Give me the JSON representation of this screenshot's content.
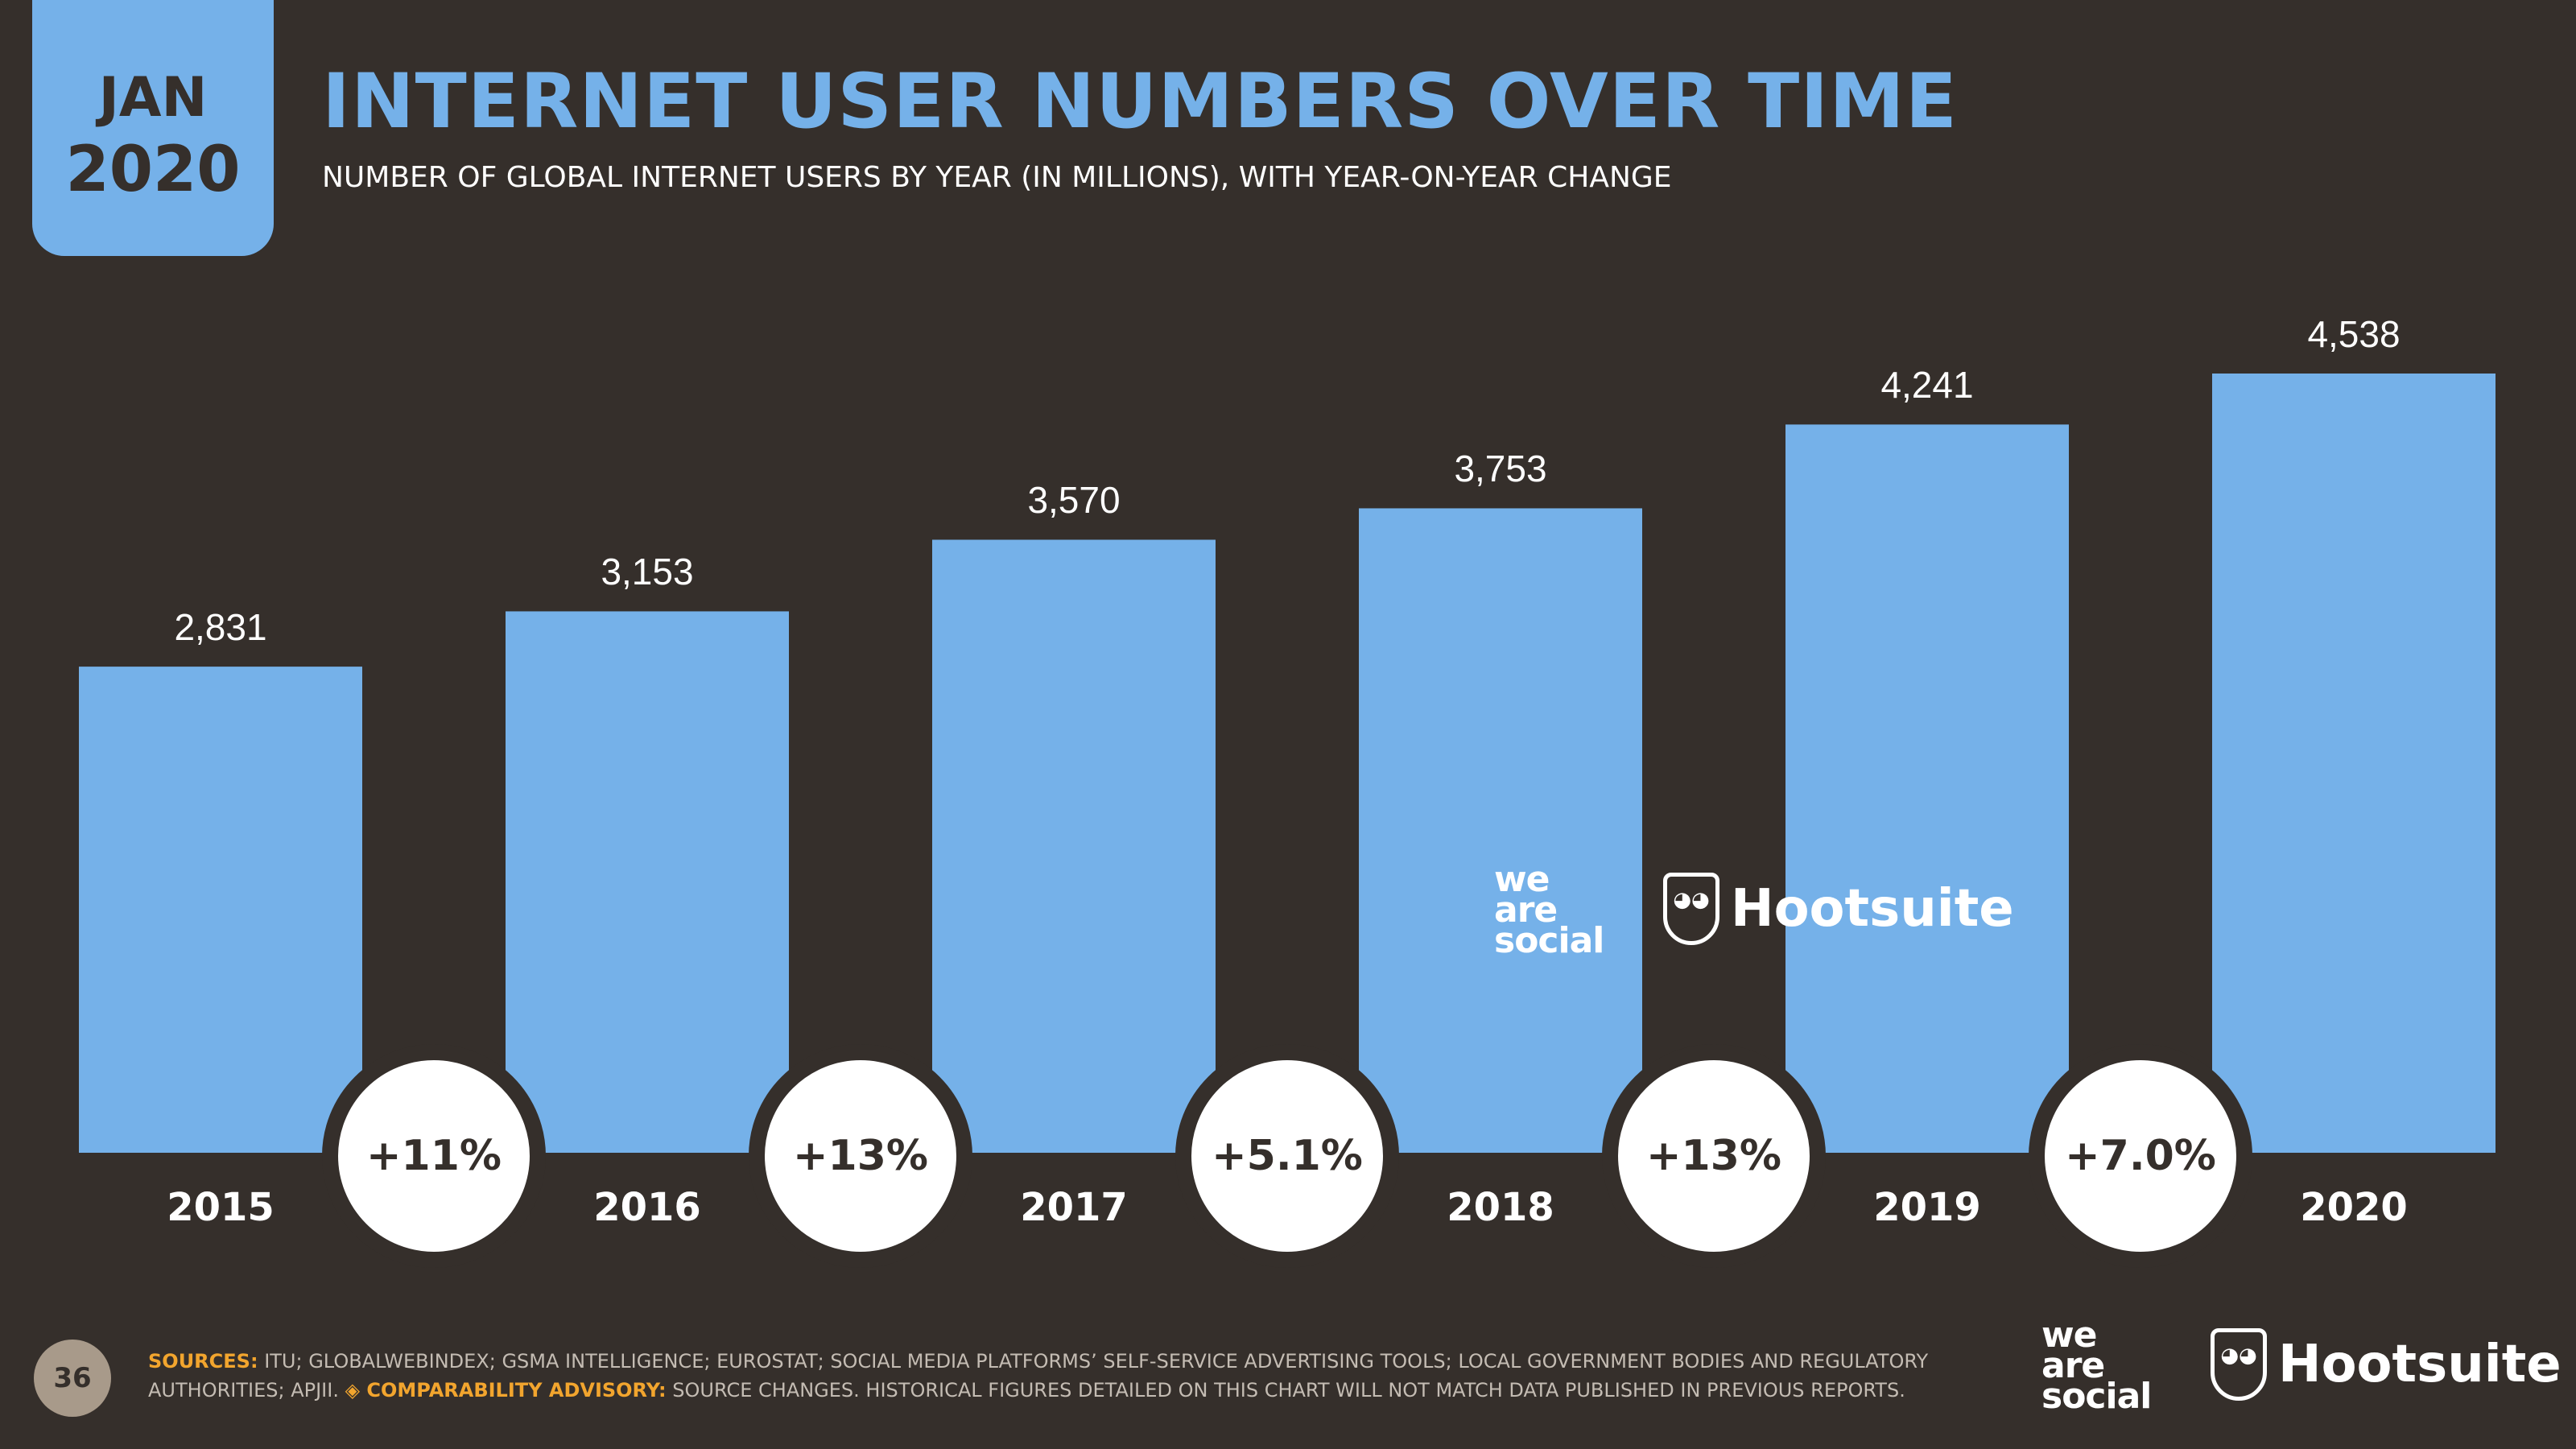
{
  "header": {
    "month": "JAN",
    "year": "2020",
    "title": "INTERNET USER NUMBERS OVER TIME",
    "subtitle": "NUMBER OF GLOBAL INTERNET USERS BY YEAR (IN MILLIONS), WITH YEAR-ON-YEAR CHANGE"
  },
  "colors": {
    "background": "#352f2b",
    "bar": "#75b1e9",
    "accent_orange": "#f2a52e"
  },
  "chart_data": {
    "type": "bar",
    "title": "INTERNET USER NUMBERS OVER TIME",
    "subtitle": "NUMBER OF GLOBAL INTERNET USERS BY YEAR (IN MILLIONS), WITH YEAR-ON-YEAR CHANGE",
    "categories": [
      "2015",
      "2016",
      "2017",
      "2018",
      "2019",
      "2020"
    ],
    "values": [
      2831,
      3153,
      3570,
      3753,
      4241,
      4538
    ],
    "value_labels": [
      "2,831",
      "3,153",
      "3,570",
      "3,753",
      "4,241",
      "4,538"
    ],
    "changes": [
      "+11%",
      "+13%",
      "+5.1%",
      "+13%",
      "+7.0%"
    ],
    "ylim": [
      0,
      4538
    ],
    "grid": false,
    "xlabel": "",
    "ylabel": ""
  },
  "watermark": {
    "was": [
      "we",
      "are",
      "social"
    ],
    "hootsuite": "Hootsuite"
  },
  "footer": {
    "page_number": "36",
    "sources_label": "SOURCES:",
    "sources_text": "ITU; GLOBALWEBINDEX; GSMA INTELLIGENCE; EUROSTAT; SOCIAL MEDIA PLATFORMS’ SELF-SERVICE ADVERTISING TOOLS; LOCAL GOVERNMENT BODIES AND REGULATORY AUTHORITIES; APJII.",
    "advisory_label": "◈ COMPARABILITY ADVISORY:",
    "advisory_text": "SOURCE CHANGES. HISTORICAL FIGURES DETAILED ON THIS CHART WILL NOT MATCH DATA PUBLISHED IN PREVIOUS REPORTS.",
    "logo_was": [
      "we",
      "are",
      "social"
    ],
    "logo_hootsuite": "Hootsuite"
  }
}
